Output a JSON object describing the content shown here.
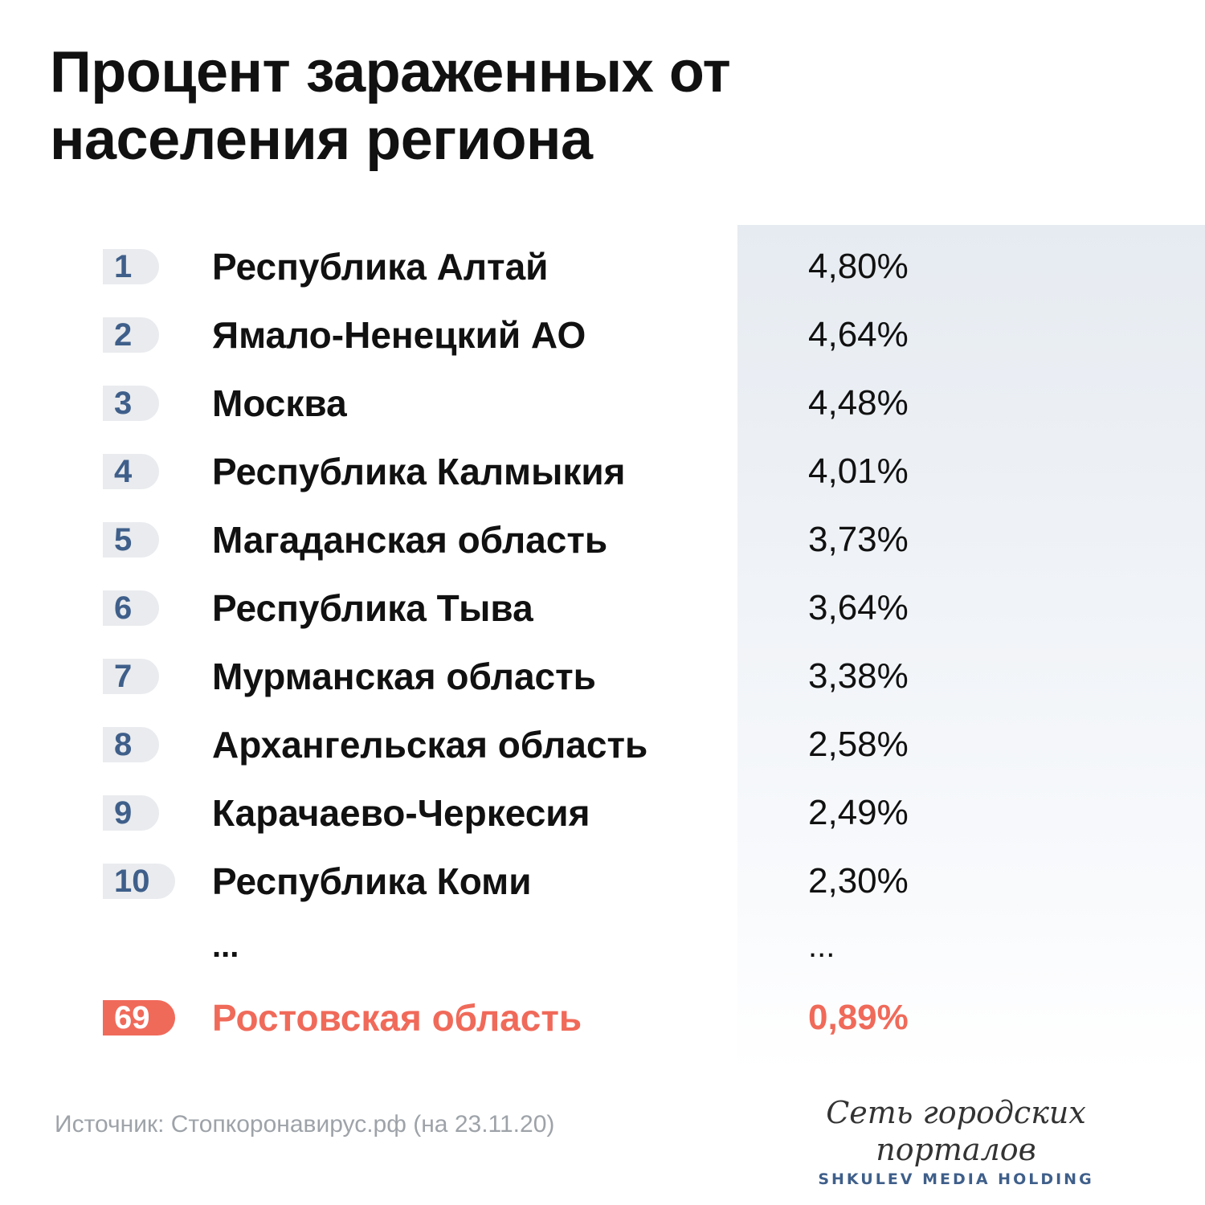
{
  "title_line1": "Процент зараженных от",
  "title_line2": "населения региона",
  "chart_data": {
    "type": "table",
    "title": "Процент зараженных от населения региона",
    "columns": [
      "rank",
      "region",
      "value"
    ],
    "rows": [
      {
        "rank": "1",
        "region": "Республика Алтай",
        "value": "4,80%"
      },
      {
        "rank": "2",
        "region": "Ямало-Ненецкий АО",
        "value": "4,64%"
      },
      {
        "rank": "3",
        "region": "Москва",
        "value": "4,48%"
      },
      {
        "rank": "4",
        "region": "Республика Калмыкия",
        "value": "4,01%"
      },
      {
        "rank": "5",
        "region": "Магаданская область",
        "value": "3,73%"
      },
      {
        "rank": "6",
        "region": "Республика Тыва",
        "value": "3,64%"
      },
      {
        "rank": "7",
        "region": "Мурманская область",
        "value": "3,38%"
      },
      {
        "rank": "8",
        "region": "Архангельская область",
        "value": "2,58%"
      },
      {
        "rank": "9",
        "region": "Карачаево-Черкесия",
        "value": "2,49%"
      },
      {
        "rank": "10",
        "region": "Республика Коми",
        "value": "2,30%"
      }
    ],
    "ellipsis": {
      "region": "...",
      "value": "..."
    },
    "highlight": {
      "rank": "69",
      "region": "Ростовская область",
      "value": "0,89%"
    }
  },
  "colors": {
    "rank_text": "#3f5f8a",
    "rank_badge": "#e9ebee",
    "highlight": "#f06a5a",
    "panel": "#e6ebf1"
  },
  "footer": {
    "source": "Источник: Стопкоронавирус.рф (на 23.11.20)",
    "brand_name": "Сеть городских порталов",
    "brand_sub": "SHKULEV MEDIA HOLDING"
  }
}
